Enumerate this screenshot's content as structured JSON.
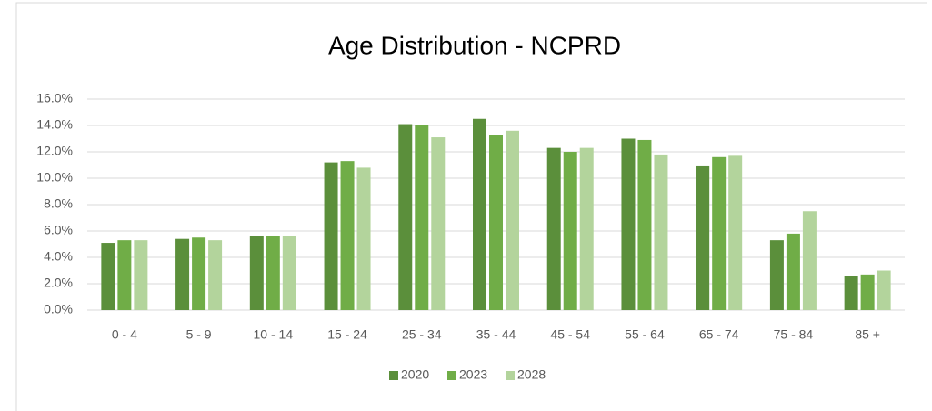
{
  "chart_data": {
    "type": "bar",
    "title": "Age Distribution - NCPRD",
    "categories": [
      "0 - 4",
      "5 - 9",
      "10 - 14",
      "15 - 24",
      "25 - 34",
      "35 - 44",
      "45 - 54",
      "55 - 64",
      "65 - 74",
      "75 - 84",
      "85 +"
    ],
    "series": [
      {
        "name": "2020",
        "color": "#5b8f3b",
        "values": [
          5.1,
          5.4,
          5.6,
          11.2,
          14.1,
          14.5,
          12.3,
          13.0,
          10.9,
          5.3,
          2.6
        ]
      },
      {
        "name": "2023",
        "color": "#70ad47",
        "values": [
          5.3,
          5.5,
          5.6,
          11.3,
          14.0,
          13.3,
          12.0,
          12.9,
          11.6,
          5.8,
          2.7
        ]
      },
      {
        "name": "2028",
        "color": "#b3d49c",
        "values": [
          5.3,
          5.3,
          5.6,
          10.8,
          13.1,
          13.6,
          12.3,
          11.8,
          11.7,
          7.5,
          3.0
        ]
      }
    ],
    "ylim": [
      0,
      16
    ],
    "yticks": [
      {
        "value": 0,
        "label": "0.0%"
      },
      {
        "value": 2,
        "label": "2.0%"
      },
      {
        "value": 4,
        "label": "4.0%"
      },
      {
        "value": 6,
        "label": "6.0%"
      },
      {
        "value": 8,
        "label": "8.0%"
      },
      {
        "value": 10,
        "label": "10.0%"
      },
      {
        "value": 12,
        "label": "12.0%"
      },
      {
        "value": 14,
        "label": "14.0%"
      },
      {
        "value": 16,
        "label": "16.0%"
      }
    ],
    "grid": true,
    "legend": "bottom"
  }
}
